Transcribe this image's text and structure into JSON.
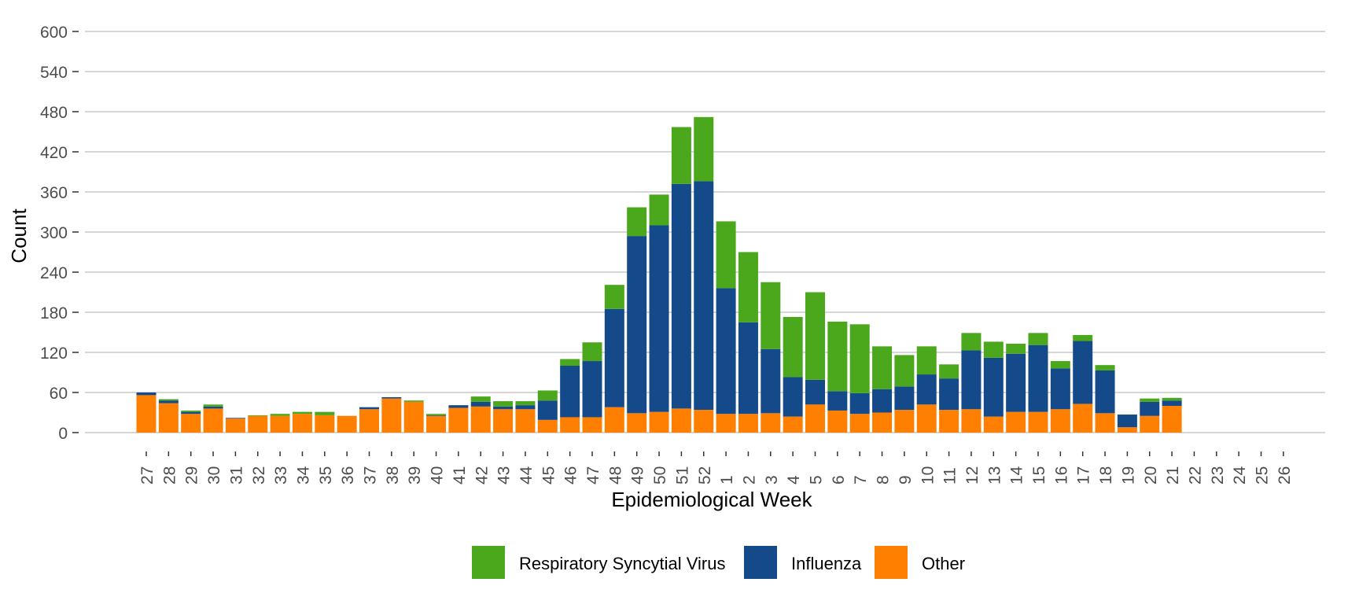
{
  "chart_data": {
    "type": "bar",
    "stacked": true,
    "title": "",
    "xlabel": "Epidemiological Week",
    "ylabel": "Count",
    "ylim": [
      0,
      600
    ],
    "yticks": [
      0,
      60,
      120,
      180,
      240,
      300,
      360,
      420,
      480,
      540,
      600
    ],
    "grid": "horizontal",
    "legend_position": "bottom",
    "categories": [
      "27",
      "28",
      "29",
      "30",
      "31",
      "32",
      "33",
      "34",
      "35",
      "36",
      "37",
      "38",
      "39",
      "40",
      "41",
      "42",
      "43",
      "44",
      "45",
      "46",
      "47",
      "48",
      "49",
      "50",
      "51",
      "52",
      "1",
      "2",
      "3",
      "4",
      "5",
      "6",
      "7",
      "8",
      "9",
      "10",
      "11",
      "12",
      "13",
      "14",
      "15",
      "16",
      "17",
      "18",
      "19",
      "20",
      "21",
      "22",
      "23",
      "24",
      "25",
      "26"
    ],
    "series": [
      {
        "name": "Other",
        "color": "#FF7F00",
        "values": [
          56,
          44,
          28,
          36,
          21,
          25,
          25,
          28,
          26,
          25,
          35,
          51,
          46,
          25,
          37,
          39,
          35,
          35,
          19,
          23,
          23,
          38,
          29,
          31,
          36,
          34,
          28,
          28,
          29,
          24,
          42,
          33,
          28,
          30,
          34,
          42,
          34,
          35,
          24,
          31,
          31,
          35,
          43,
          29,
          8,
          25,
          40,
          0,
          0,
          0,
          0,
          0
        ]
      },
      {
        "name": "Influenza",
        "color": "#154A8A",
        "values": [
          4,
          4,
          3,
          3,
          1,
          0,
          0,
          0,
          0,
          0,
          3,
          2,
          0,
          1,
          4,
          7,
          4,
          6,
          29,
          77,
          84,
          147,
          265,
          279,
          336,
          342,
          188,
          137,
          96,
          59,
          37,
          29,
          31,
          35,
          35,
          45,
          47,
          88,
          88,
          87,
          100,
          61,
          94,
          64,
          19,
          21,
          8,
          0,
          0,
          0,
          0,
          0
        ]
      },
      {
        "name": "Respiratory Syncytial Virus",
        "color": "#4BA81C",
        "values": [
          0,
          2,
          2,
          3,
          0,
          1,
          3,
          3,
          5,
          0,
          0,
          0,
          2,
          2,
          0,
          8,
          8,
          6,
          15,
          10,
          28,
          36,
          43,
          46,
          85,
          96,
          100,
          105,
          100,
          90,
          131,
          104,
          103,
          64,
          47,
          42,
          21,
          26,
          24,
          15,
          18,
          11,
          9,
          8,
          0,
          5,
          4,
          0,
          0,
          0,
          0,
          0
        ]
      }
    ],
    "legend": [
      "Respiratory Syncytial Virus",
      "Influenza",
      "Other"
    ]
  }
}
